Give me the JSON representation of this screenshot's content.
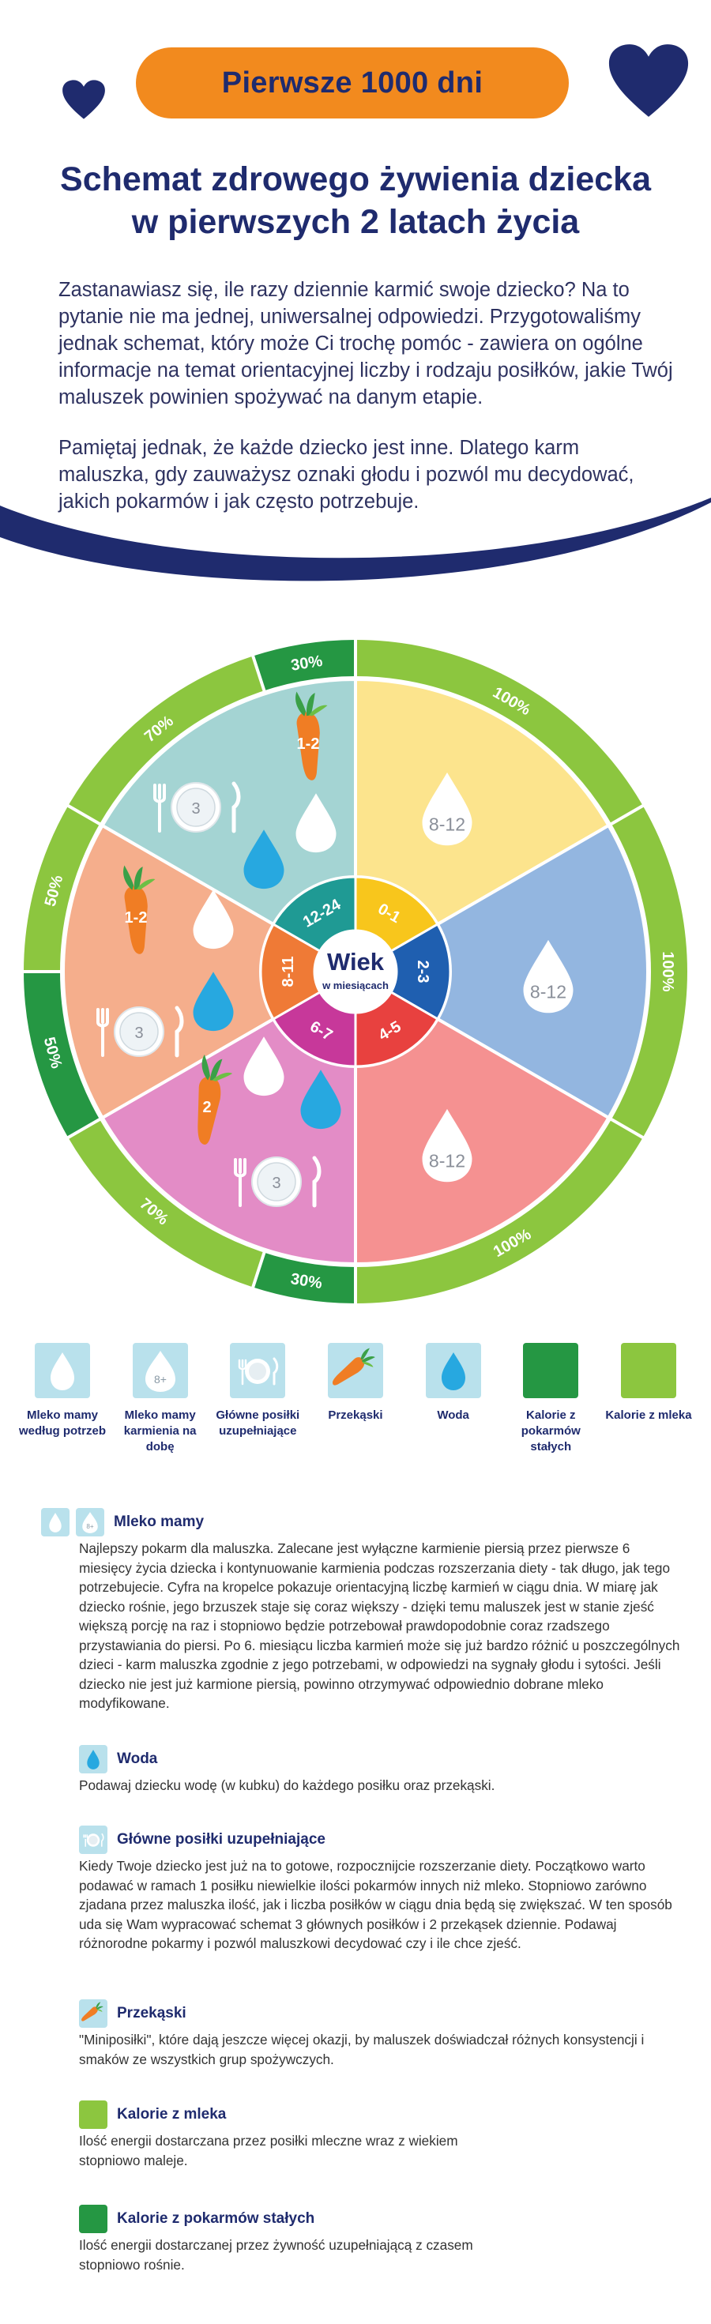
{
  "header": {
    "pill": "Pierwsze 1000 dni",
    "title_line1": "Schemat zdrowego żywienia dziecka",
    "title_line2": "w pierwszych 2 latach życia"
  },
  "intro": {
    "p1": "Zastanawiasz się, ile razy dziennie karmić swoje dziecko? Na to pytanie nie ma jednej, uniwersalnej odpowiedzi. Przygotowaliśmy jednak schemat, który może Ci trochę pomóc - zawiera on ogólne informacje na temat orientacyjnej liczby i rodzaju posiłków, jakie Twój maluszek powinien spożywać na danym etapie.",
    "p2": "Pamiętaj jednak, że każde dziecko jest inne. Dlatego karm maluszka, gdy zauważysz oznaki głodu i pozwól mu decydować, jakich pokarmów i jak często potrzebuje."
  },
  "wheel": {
    "center_title": "Wiek",
    "center_subtitle": "w miesiącach",
    "ages": [
      "0-1",
      "2-3",
      "4-5",
      "6-7",
      "8-11",
      "12-24"
    ],
    "milk_drop_labels": [
      "8-12",
      "8-12",
      "8-12"
    ],
    "carrot_labels": [
      "2",
      "1-2",
      "1-2"
    ],
    "plate_labels": [
      "3",
      "3",
      "3"
    ],
    "outer_labels": [
      "100%",
      "100%",
      "100%",
      "70%",
      "30%",
      "50%",
      "50%",
      "70%",
      "30%"
    ],
    "colors": {
      "age_0_1": "#fce48d",
      "age_2_3": "#93b6e0",
      "age_4_5": "#f59191",
      "age_6_7": "#e38cc6",
      "age_8_11": "#f5ae8c",
      "age_12_24": "#a4d4d3",
      "light_green": "#8cc63f",
      "dark_green": "#259743",
      "navy": "#1f2b6e",
      "orange": "#f28a1e",
      "water_blue": "#27a8e0"
    }
  },
  "legend": [
    {
      "label": "Mleko mamy według potrzeb",
      "icon": "milk-drop-icon"
    },
    {
      "label": "Mleko mamy karmienia na dobę",
      "icon": "milk-count-icon",
      "badge": "8+"
    },
    {
      "label": "Główne posiłki uzupełniające",
      "icon": "plate-icon"
    },
    {
      "label": "Przekąski",
      "icon": "carrot-icon"
    },
    {
      "label": "Woda",
      "icon": "water-drop-icon"
    },
    {
      "label": "Kalorie z pokarmów stałych",
      "icon": "dark-green-square-icon"
    },
    {
      "label": "Kalorie z mleka",
      "icon": "light-green-square-icon"
    }
  ],
  "sections": {
    "milk": {
      "title": "Mleko mamy",
      "badge": "8+",
      "text": "Najlepszy pokarm dla maluszka. Zalecane jest wyłączne karmienie piersią przez pierwsze 6 miesięcy życia dziecka i kontynuowanie karmienia podczas rozszerzania diety - tak długo, jak tego potrzebujecie. Cyfra na kropelce pokazuje orientacyjną liczbę karmień w ciągu dnia. W miarę jak dziecko rośnie, jego brzuszek staje się coraz większy - dzięki temu maluszek jest w stanie zjeść większą porcję na raz i stopniowo będzie potrzebował prawdopodobnie coraz rzadszego przystawiania do piersi. Po 6. miesiącu liczba karmień może się już bardzo różnić u poszczególnych dzieci - karm maluszka zgodnie z jego potrzebami, w odpowiedzi na sygnały głodu i sytości. Jeśli dziecko nie jest już karmione piersią, powinno otrzymywać odpowiednio dobrane mleko modyfikowane."
    },
    "water": {
      "title": "Woda",
      "text": "Podawaj dziecku wodę (w kubku) do każdego posiłku oraz przekąski."
    },
    "meals": {
      "title": "Główne posiłki uzupełniające",
      "text": "Kiedy Twoje dziecko jest już na to gotowe, rozpocznijcie rozszerzanie diety. Początkowo warto podawać w ramach 1 posiłku niewielkie ilości pokarmów innych niż mleko. Stopniowo zarówno zjadana przez maluszka ilość, jak i liczba posiłków w ciągu dnia będą się zwiększać. W ten sposób uda się Wam wypracować schemat 3 głównych posiłków i 2 przekąsek dziennie. Podawaj różnorodne pokarmy i pozwól maluszkowi decydować czy i ile chce zjeść."
    },
    "snacks": {
      "title": "Przekąski",
      "text": "\"Miniposiłki\", które dają jeszcze więcej okazji, by maluszek doświadczał różnych konsystencji i smaków ze wszystkich grup spożywczych."
    },
    "milk_cal": {
      "title": "Kalorie z mleka",
      "text": "Ilość energii dostarczana przez posiłki mleczne wraz z wiekiem stopniowo maleje."
    },
    "solid_cal": {
      "title": "Kalorie z pokarmów stałych",
      "text": "Ilość energii dostarczanej przez żywność uzupełniającą z czasem stopniowo rośnie."
    }
  }
}
